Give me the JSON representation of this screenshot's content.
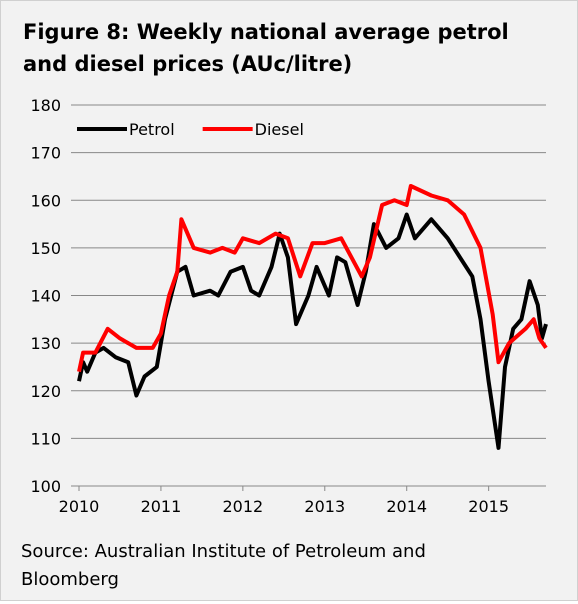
{
  "chart_data": {
    "type": "line",
    "title": "Figure 8: Weekly national average petrol and diesel prices (AUc/litre)",
    "source": "Source: Australian Institute of Petroleum and Bloomberg",
    "xlim": [
      2010,
      2015.7
    ],
    "xticks": [
      2010,
      2011,
      2012,
      2013,
      2014,
      2015
    ],
    "ylim": [
      100,
      180
    ],
    "yticks": [
      100,
      110,
      120,
      130,
      140,
      150,
      160,
      170,
      180
    ],
    "grid": true,
    "legend": "top-left",
    "series": [
      {
        "name": "Petrol",
        "color": "#000000",
        "x": [
          2010,
          2010.05,
          2010.1,
          2010.2,
          2010.3,
          2010.45,
          2010.6,
          2010.7,
          2010.8,
          2010.95,
          2011.05,
          2011.2,
          2011.3,
          2011.4,
          2011.6,
          2011.7,
          2011.85,
          2012,
          2012.1,
          2012.2,
          2012.35,
          2012.45,
          2012.55,
          2012.65,
          2012.8,
          2012.9,
          2013.05,
          2013.15,
          2013.25,
          2013.4,
          2013.5,
          2013.6,
          2013.75,
          2013.9,
          2014,
          2014.1,
          2014.3,
          2014.5,
          2014.65,
          2014.8,
          2014.9,
          2015,
          2015.12,
          2015.2,
          2015.3,
          2015.4,
          2015.5,
          2015.6,
          2015.65,
          2015.7
        ],
        "values": [
          122,
          126,
          124,
          128,
          129,
          127,
          126,
          119,
          123,
          125,
          135,
          145,
          146,
          140,
          141,
          140,
          145,
          146,
          141,
          140,
          146,
          153,
          148,
          134,
          140,
          146,
          140,
          148,
          147,
          138,
          145,
          155,
          150,
          152,
          157,
          152,
          156,
          152,
          148,
          144,
          135,
          122,
          108,
          125,
          133,
          135,
          143,
          138,
          131,
          134
        ]
      },
      {
        "name": "Diesel",
        "color": "#ff0000",
        "x": [
          2010,
          2010.05,
          2010.2,
          2010.35,
          2010.5,
          2010.7,
          2010.9,
          2011,
          2011.1,
          2011.2,
          2011.25,
          2011.4,
          2011.6,
          2011.75,
          2011.9,
          2012,
          2012.2,
          2012.4,
          2012.55,
          2012.7,
          2012.85,
          2013,
          2013.2,
          2013.45,
          2013.55,
          2013.7,
          2013.85,
          2014,
          2014.05,
          2014.3,
          2014.5,
          2014.7,
          2014.9,
          2015.05,
          2015.12,
          2015.25,
          2015.45,
          2015.55,
          2015.62,
          2015.7
        ],
        "values": [
          124,
          128,
          128,
          133,
          131,
          129,
          129,
          132,
          140,
          145,
          156,
          150,
          149,
          150,
          149,
          152,
          151,
          153,
          152,
          144,
          151,
          151,
          152,
          144,
          148,
          159,
          160,
          159,
          163,
          161,
          160,
          157,
          150,
          136,
          126,
          130,
          133,
          135,
          131,
          129
        ]
      }
    ]
  }
}
